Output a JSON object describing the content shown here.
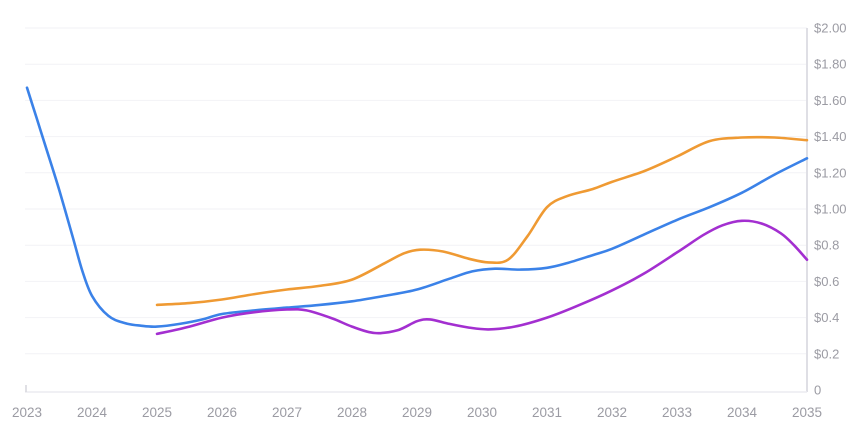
{
  "chart": {
    "background": "#ffffff",
    "axis_label_color": "#9b9ba3",
    "grid_color": "#f2f2f6",
    "vertical_axis_color": "#dfdfe5",
    "horizontal_axis_color": "#ececf1",
    "tick_color": "#d6d6dc",
    "x_tick_labels": [
      "2023",
      "2024",
      "2025",
      "2026",
      "2027",
      "2028",
      "2029",
      "2030",
      "2031",
      "2032",
      "2033",
      "2034",
      "2035"
    ],
    "y_tick_labels": [
      "0",
      "$0.2",
      "$0.4",
      "$0.6",
      "$0.8",
      "$1.00",
      "$1.20",
      "$1.40",
      "$1.60",
      "$1.80",
      "$2.00"
    ]
  },
  "chart_data": {
    "type": "line",
    "title": "",
    "xlabel": "",
    "ylabel": "",
    "x_range": [
      2023,
      2035
    ],
    "ylim": [
      0,
      2.0
    ],
    "y_tick_step": 0.2,
    "grid": true,
    "legend": "none",
    "y_axis_side": "right",
    "y_ticks": [
      {
        "value": 0.0,
        "label": "0"
      },
      {
        "value": 0.2,
        "label": "$0.2"
      },
      {
        "value": 0.4,
        "label": "$0.4"
      },
      {
        "value": 0.6,
        "label": "$0.6"
      },
      {
        "value": 0.8,
        "label": "$0.8"
      },
      {
        "value": 1.0,
        "label": "$1.00"
      },
      {
        "value": 1.2,
        "label": "$1.20"
      },
      {
        "value": 1.4,
        "label": "$1.40"
      },
      {
        "value": 1.6,
        "label": "$1.60"
      },
      {
        "value": 1.8,
        "label": "$1.80"
      },
      {
        "value": 2.0,
        "label": "$2.00"
      }
    ],
    "x_ticks": [
      2023,
      2024,
      2025,
      2026,
      2027,
      2028,
      2029,
      2030,
      2031,
      2032,
      2033,
      2034,
      2035
    ],
    "series": [
      {
        "name": "blue-line",
        "color": "#3b82e8",
        "stroke_width": 2.6,
        "points": [
          [
            2023.0,
            1.67
          ],
          [
            2023.15,
            1.5
          ],
          [
            2023.3,
            1.33
          ],
          [
            2023.5,
            1.1
          ],
          [
            2023.7,
            0.85
          ],
          [
            2023.85,
            0.66
          ],
          [
            2024.0,
            0.52
          ],
          [
            2024.25,
            0.41
          ],
          [
            2024.5,
            0.37
          ],
          [
            2024.75,
            0.355
          ],
          [
            2025.0,
            0.35
          ],
          [
            2025.35,
            0.365
          ],
          [
            2025.7,
            0.39
          ],
          [
            2026.0,
            0.42
          ],
          [
            2026.5,
            0.44
          ],
          [
            2027.0,
            0.455
          ],
          [
            2027.5,
            0.47
          ],
          [
            2028.0,
            0.49
          ],
          [
            2028.5,
            0.52
          ],
          [
            2029.0,
            0.555
          ],
          [
            2029.5,
            0.615
          ],
          [
            2029.85,
            0.655
          ],
          [
            2030.2,
            0.67
          ],
          [
            2030.6,
            0.665
          ],
          [
            2031.0,
            0.675
          ],
          [
            2031.3,
            0.7
          ],
          [
            2031.7,
            0.745
          ],
          [
            2032.0,
            0.78
          ],
          [
            2032.5,
            0.86
          ],
          [
            2033.0,
            0.94
          ],
          [
            2033.5,
            1.01
          ],
          [
            2034.0,
            1.09
          ],
          [
            2034.5,
            1.19
          ],
          [
            2035.0,
            1.28
          ]
        ]
      },
      {
        "name": "orange-line",
        "color": "#ef9a33",
        "stroke_width": 2.6,
        "points": [
          [
            2025.0,
            0.47
          ],
          [
            2025.5,
            0.48
          ],
          [
            2026.0,
            0.5
          ],
          [
            2026.5,
            0.53
          ],
          [
            2027.0,
            0.555
          ],
          [
            2027.5,
            0.575
          ],
          [
            2028.0,
            0.61
          ],
          [
            2028.5,
            0.7
          ],
          [
            2028.8,
            0.755
          ],
          [
            2029.05,
            0.775
          ],
          [
            2029.4,
            0.765
          ],
          [
            2029.8,
            0.725
          ],
          [
            2030.1,
            0.705
          ],
          [
            2030.4,
            0.72
          ],
          [
            2030.7,
            0.85
          ],
          [
            2031.0,
            1.01
          ],
          [
            2031.3,
            1.07
          ],
          [
            2031.7,
            1.11
          ],
          [
            2032.0,
            1.15
          ],
          [
            2032.5,
            1.21
          ],
          [
            2033.0,
            1.29
          ],
          [
            2033.5,
            1.375
          ],
          [
            2034.0,
            1.395
          ],
          [
            2034.5,
            1.395
          ],
          [
            2035.0,
            1.38
          ]
        ]
      },
      {
        "name": "purple-line",
        "color": "#a32fd0",
        "stroke_width": 2.6,
        "points": [
          [
            2025.0,
            0.31
          ],
          [
            2025.5,
            0.35
          ],
          [
            2026.0,
            0.4
          ],
          [
            2026.5,
            0.43
          ],
          [
            2027.0,
            0.445
          ],
          [
            2027.3,
            0.44
          ],
          [
            2027.7,
            0.395
          ],
          [
            2028.0,
            0.35
          ],
          [
            2028.35,
            0.315
          ],
          [
            2028.7,
            0.33
          ],
          [
            2029.0,
            0.38
          ],
          [
            2029.2,
            0.39
          ],
          [
            2029.5,
            0.365
          ],
          [
            2029.8,
            0.345
          ],
          [
            2030.1,
            0.335
          ],
          [
            2030.5,
            0.35
          ],
          [
            2031.0,
            0.4
          ],
          [
            2031.5,
            0.47
          ],
          [
            2032.0,
            0.55
          ],
          [
            2032.5,
            0.645
          ],
          [
            2033.0,
            0.76
          ],
          [
            2033.4,
            0.855
          ],
          [
            2033.7,
            0.91
          ],
          [
            2034.0,
            0.935
          ],
          [
            2034.3,
            0.92
          ],
          [
            2034.6,
            0.865
          ],
          [
            2034.8,
            0.8
          ],
          [
            2035.0,
            0.72
          ]
        ]
      }
    ]
  }
}
